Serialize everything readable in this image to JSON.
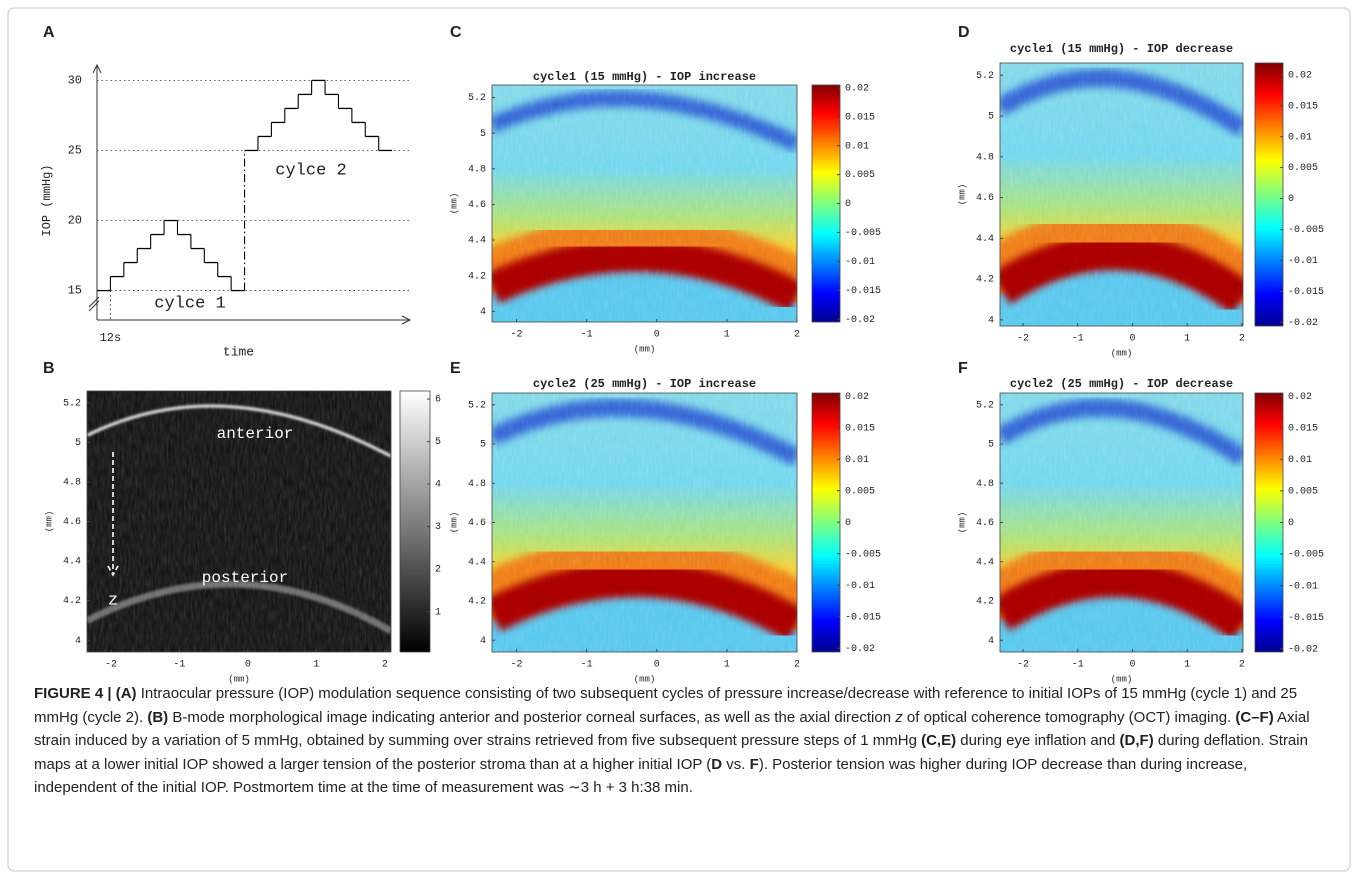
{
  "chart_data": [
    {
      "label": "A",
      "type": "step",
      "xlabel": "time",
      "ylabel": "IOP (mmHg)",
      "x": [
        0,
        12,
        24,
        36,
        48,
        60,
        72,
        84,
        96,
        108,
        120,
        132,
        144,
        156,
        168,
        180,
        192,
        204,
        216,
        228,
        240,
        252
      ],
      "values": [
        15,
        16,
        17,
        18,
        19,
        20,
        19,
        18,
        17,
        16,
        15,
        25,
        26,
        27,
        28,
        29,
        30,
        29,
        28,
        27,
        26,
        25
      ],
      "xlim": [
        0,
        280
      ],
      "xticks": [
        {
          "value": 12,
          "label": "12s"
        }
      ],
      "ylim": [
        12.9,
        31.1
      ],
      "yticks": [
        15,
        20,
        25,
        30
      ],
      "grid": true,
      "color": "#000000",
      "annotations": [
        "cylce 1",
        "cylce 2"
      ]
    },
    {
      "label": "B",
      "type": "heatmap",
      "colormap": "gray",
      "xlabel": "(mm)",
      "ylabel": "(mm)",
      "xlim": [
        -2.35,
        2.09
      ],
      "xticks": [
        -2,
        -1,
        0,
        1,
        2
      ],
      "ylim": [
        3.94,
        5.26
      ],
      "yticks": [
        4,
        4.2,
        4.4,
        4.6,
        4.8,
        5,
        5.2
      ],
      "clim": [
        0.05,
        6.19
      ],
      "cticks": [
        1,
        2,
        3,
        4,
        5,
        6
      ],
      "annotations": [
        "anterior",
        "posterior",
        "z"
      ]
    },
    {
      "label": "C",
      "type": "heatmap",
      "colormap": "jet",
      "title": "cycle1 (15 mmHg) - IOP increase",
      "xlabel": "(mm)",
      "ylabel": "(mm)",
      "xlim": [
        -2.35,
        2
      ],
      "xticks": [
        -2,
        -1,
        0,
        1,
        2
      ],
      "ylim": [
        3.94,
        5.27
      ],
      "yticks": [
        4,
        4.2,
        4.4,
        4.6,
        4.8,
        5,
        5.2
      ],
      "clim": [
        -0.0205,
        0.0205
      ],
      "cticks": [
        -0.02,
        -0.015,
        -0.01,
        -0.005,
        0,
        0.005,
        0.01,
        0.015,
        0.02
      ]
    },
    {
      "label": "D",
      "type": "heatmap",
      "colormap": "jet",
      "title": "cycle1 (15 mmHg) - IOP decrease",
      "xlabel": "(mm)",
      "ylabel": "(mm)",
      "xlim": [
        -2.42,
        2.02
      ],
      "xticks": [
        -2,
        -1,
        0,
        1,
        2
      ],
      "ylim": [
        3.97,
        5.26
      ],
      "yticks": [
        4,
        4.2,
        4.4,
        4.6,
        4.8,
        5,
        5.2
      ],
      "clim": [
        -0.0206,
        0.0219
      ],
      "cticks": [
        -0.02,
        -0.015,
        -0.01,
        -0.005,
        0,
        0.005,
        0.01,
        0.015,
        0.02
      ]
    },
    {
      "label": "E",
      "type": "heatmap",
      "colormap": "jet",
      "title": "cycle2 (25 mmHg) - IOP increase",
      "xlabel": "(mm)",
      "ylabel": "(mm)",
      "xlim": [
        -2.35,
        2
      ],
      "xticks": [
        -2,
        -1,
        0,
        1,
        2
      ],
      "ylim": [
        3.94,
        5.26
      ],
      "yticks": [
        4,
        4.2,
        4.4,
        4.6,
        4.8,
        5,
        5.2
      ],
      "clim": [
        -0.0206,
        0.0205
      ],
      "cticks": [
        -0.02,
        -0.015,
        -0.01,
        -0.005,
        0,
        0.005,
        0.01,
        0.015,
        0.02
      ]
    },
    {
      "label": "F",
      "type": "heatmap",
      "colormap": "jet",
      "title": "cycle2 (25 mmHg) - IOP decrease",
      "xlabel": "(mm)",
      "ylabel": "(mm)",
      "xlim": [
        -2.42,
        2.02
      ],
      "xticks": [
        -2,
        -1,
        0,
        1,
        2
      ],
      "ylim": [
        3.94,
        5.26
      ],
      "yticks": [
        4,
        4.2,
        4.4,
        4.6,
        4.8,
        5,
        5.2
      ],
      "clim": [
        -0.0205,
        0.0205
      ],
      "cticks": [
        -0.02,
        -0.015,
        -0.01,
        -0.005,
        0,
        0.005,
        0.01,
        0.015,
        0.02
      ]
    }
  ],
  "caption": {
    "parts": [
      "FIGURE 4 | ",
      "(A)",
      " Intraocular pressure (IOP) modulation sequence consisting of two subsequent cycles of pressure increase/decrease with reference to initial IOPs of 15 mmHg (cycle 1) and 25 mmHg (cycle 2). ",
      "(B)",
      " B-mode morphological image indicating anterior and posterior corneal surfaces, as well as the axial direction ",
      "z",
      " of optical coherence tomography (OCT) imaging. ",
      "(C–F)",
      " Axial strain induced by a variation of 5 mmHg, obtained by summing over strains retrieved from five subsequent pressure steps of 1 mmHg ",
      "(C,E)",
      " during eye inflation and ",
      "(D,F)",
      " during deflation. Strain maps at a lower initial IOP showed a larger tension of the posterior stroma than at a higher initial IOP (",
      "D",
      " vs. ",
      "F",
      "). Posterior tension was higher during IOP decrease than during increase, independent of the initial IOP. Postmortem time at the time of measurement was ∼3 h + 3 h:38 min."
    ]
  }
}
